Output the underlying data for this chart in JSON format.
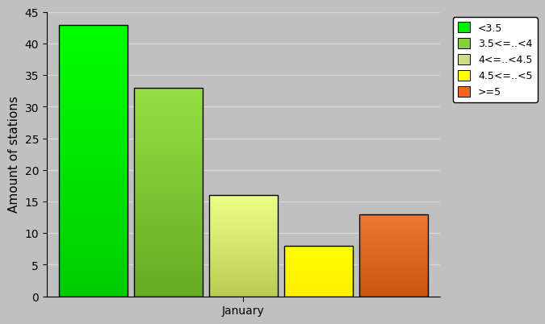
{
  "bars": [
    {
      "label": "<3.5",
      "value": 43,
      "color_top": "#00ff00",
      "color_bot": "#00cc00"
    },
    {
      "label": "3.5<=..<4",
      "value": 33,
      "color_top": "#99dd44",
      "color_bot": "#66aa22"
    },
    {
      "label": "4<=..<4.5",
      "value": 16,
      "color_top": "#eeff88",
      "color_bot": "#bbcc55"
    },
    {
      "label": "4.5<=..<5",
      "value": 8,
      "color_top": "#ffff00",
      "color_bot": "#ffee00"
    },
    {
      "label": ">=5",
      "value": 13,
      "color_top": "#ee7733",
      "color_bot": "#cc5511"
    }
  ],
  "legend_colors": [
    "#00ee00",
    "#88cc44",
    "#ccdd88",
    "#ffff00",
    "#ee6622"
  ],
  "ylabel": "Amount of stations",
  "xlabel": "January",
  "ylim": [
    0,
    45
  ],
  "yticks": [
    0,
    5,
    10,
    15,
    20,
    25,
    30,
    35,
    40,
    45
  ],
  "background_color": "#c0c0c0",
  "plot_bg_color": "#b8b8b8",
  "grid_color": "#d8d8d8",
  "tick_fontsize": 10,
  "axis_fontsize": 11,
  "legend_fontsize": 9
}
